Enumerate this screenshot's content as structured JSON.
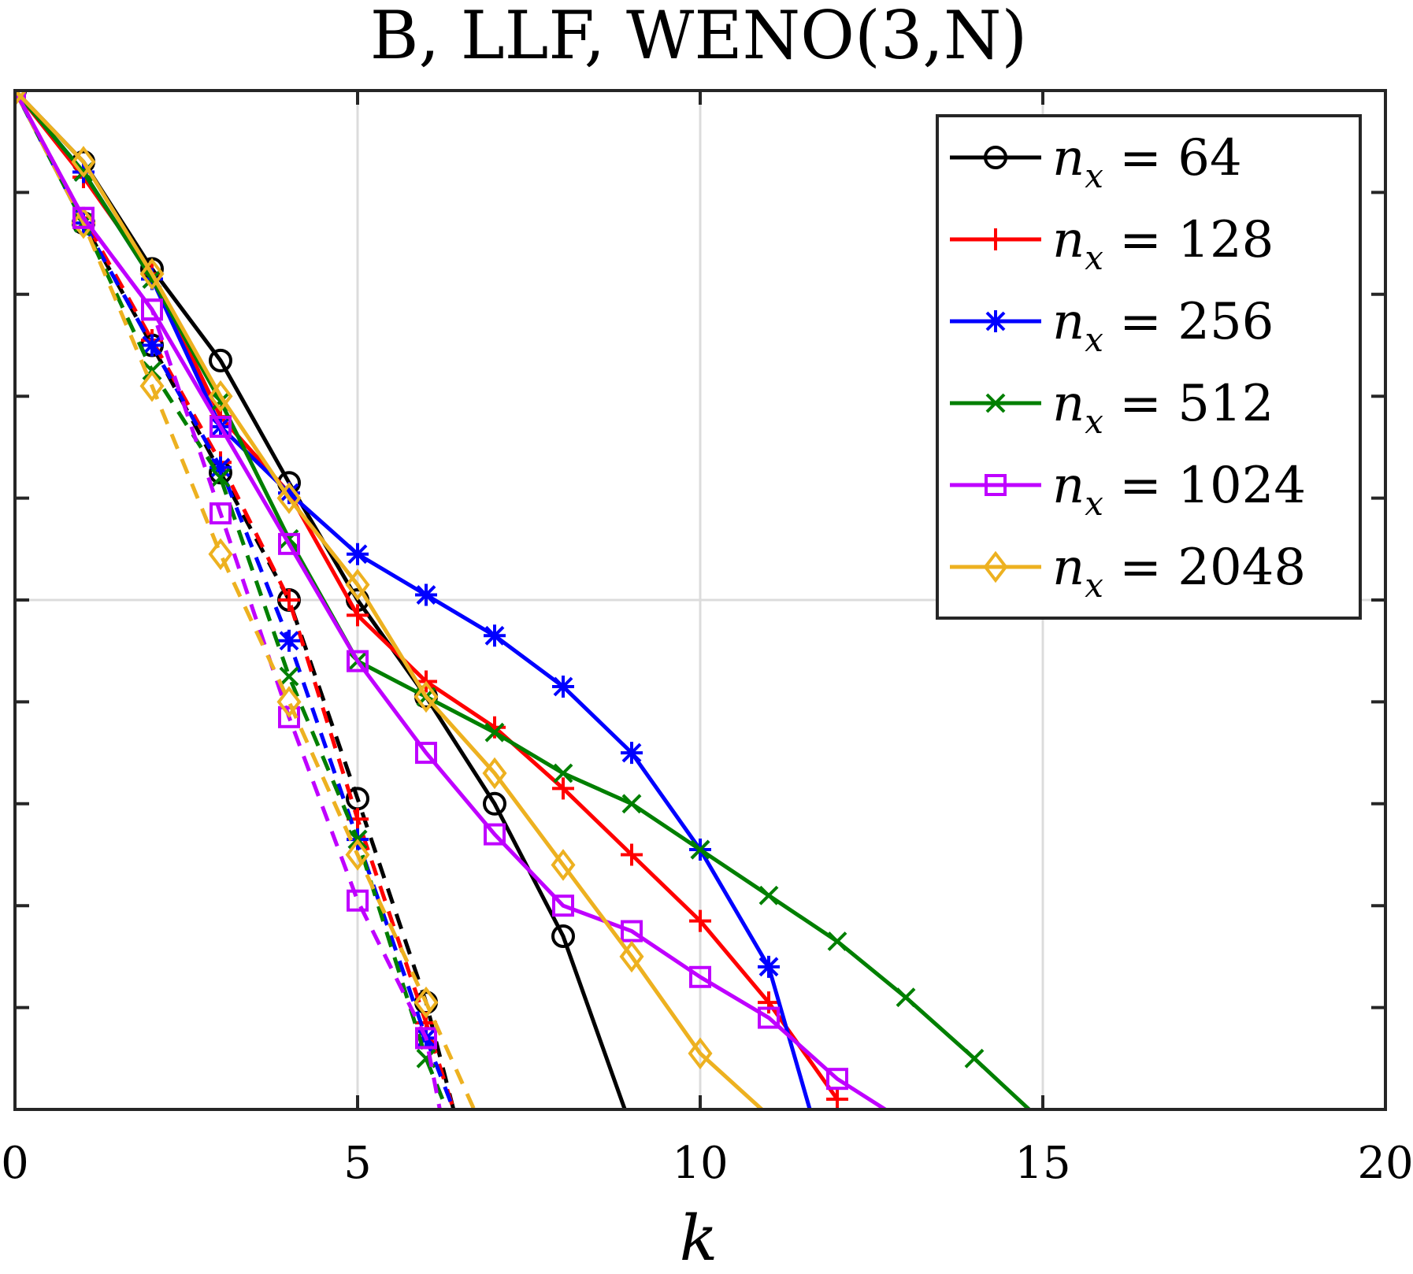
{
  "chart_data": {
    "type": "line",
    "title": "B, LLF, WENO(3,N)",
    "xlabel": "k",
    "ylabel": "",
    "xlim": [
      0,
      20
    ],
    "ylim": [
      -20,
      0
    ],
    "x_ticks": [
      0,
      5,
      10,
      15,
      20
    ],
    "x_tick_labels": [
      "0",
      "5",
      "10",
      "15",
      "20"
    ],
    "y_ticks": [
      -20,
      -18,
      -16,
      -14,
      -12,
      -10,
      -8,
      -6,
      -4,
      -2,
      0
    ],
    "grid": true,
    "legend_position": "top-right",
    "series": [
      {
        "name": "n_x = 64",
        "legend_var": "n",
        "legend_sub": "x",
        "legend_value": "64",
        "color": "#000000",
        "marker": "circle",
        "x": [
          0,
          1,
          2,
          3,
          4,
          5,
          6,
          7,
          8,
          8.9
        ],
        "y": [
          0,
          -1.4,
          -3.5,
          -5.3,
          -7.7,
          -10.0,
          -11.9,
          -14.0,
          -16.6,
          -20.0
        ],
        "dashed_x": [
          0,
          1,
          2,
          3,
          4,
          5,
          6,
          6.4
        ],
        "dashed_y": [
          0,
          -2.6,
          -5.0,
          -7.5,
          -10.0,
          -13.9,
          -17.9,
          -20.0
        ]
      },
      {
        "name": "n_x = 128",
        "legend_var": "n",
        "legend_sub": "x",
        "legend_value": "128",
        "color": "#ff0000",
        "marker": "plus",
        "x": [
          0,
          1,
          2,
          3,
          4,
          5,
          6,
          7,
          8,
          9,
          10,
          11,
          12
        ],
        "y": [
          0,
          -1.7,
          -3.6,
          -6.4,
          -7.9,
          -10.3,
          -11.6,
          -12.5,
          -13.7,
          -15.0,
          -16.3,
          -17.9,
          -19.8
        ],
        "dashed_x": [
          0,
          1,
          2,
          3,
          4,
          5,
          6,
          6.4
        ],
        "dashed_y": [
          0,
          -2.5,
          -4.9,
          -7.3,
          -10.0,
          -14.3,
          -18.3,
          -20.0
        ]
      },
      {
        "name": "n_x = 256",
        "legend_var": "n",
        "legend_sub": "x",
        "legend_value": "256",
        "color": "#0000ff",
        "marker": "star",
        "x": [
          0,
          1,
          2,
          3,
          4,
          5,
          6,
          7,
          8,
          9,
          10,
          11,
          11.6
        ],
        "y": [
          0,
          -1.6,
          -3.7,
          -6.6,
          -7.9,
          -9.1,
          -9.9,
          -10.7,
          -11.7,
          -13.0,
          -14.9,
          -17.2,
          -20.0
        ],
        "dashed_x": [
          0,
          1,
          2,
          3,
          4,
          5,
          6,
          6.4
        ],
        "dashed_y": [
          0,
          -2.6,
          -5.0,
          -7.4,
          -10.8,
          -14.7,
          -18.6,
          -20.0
        ]
      },
      {
        "name": "n_x = 512",
        "legend_var": "n",
        "legend_sub": "x",
        "legend_value": "512",
        "color": "#007f00",
        "marker": "x",
        "x": [
          0,
          1,
          2,
          3,
          4,
          5,
          6,
          7,
          8,
          9,
          10,
          11,
          12,
          13,
          14,
          14.8
        ],
        "y": [
          0,
          -1.6,
          -3.7,
          -6.1,
          -8.8,
          -11.2,
          -11.9,
          -12.6,
          -13.4,
          -14.0,
          -14.9,
          -15.8,
          -16.7,
          -17.8,
          -19.0,
          -20.0
        ],
        "dashed_x": [
          0,
          1,
          2,
          3,
          4,
          5,
          6,
          6.3
        ],
        "dashed_y": [
          0,
          -2.6,
          -5.5,
          -7.6,
          -11.5,
          -14.7,
          -19.0,
          -20.0
        ]
      },
      {
        "name": "n_x = 1024",
        "legend_var": "n",
        "legend_sub": "x",
        "legend_value": "1024",
        "color": "#bf00ff",
        "marker": "square",
        "x": [
          0,
          1,
          2,
          3,
          4,
          5,
          6,
          7,
          8,
          9,
          10,
          11,
          12,
          12.7
        ],
        "y": [
          0,
          -2.5,
          -4.3,
          -6.6,
          -8.9,
          -11.2,
          -13.0,
          -14.6,
          -16.0,
          -16.5,
          -17.4,
          -18.2,
          -19.4,
          -20.0
        ],
        "dashed_x": [
          0,
          1,
          2,
          3,
          4,
          5,
          6,
          6.2
        ],
        "dashed_y": [
          0,
          -2.5,
          -4.3,
          -8.3,
          -12.3,
          -15.9,
          -18.6,
          -20.0
        ]
      },
      {
        "name": "n_x = 2048",
        "legend_var": "n",
        "legend_sub": "x",
        "legend_value": "2048",
        "color": "#edb120",
        "marker": "diamond",
        "x": [
          0,
          1,
          2,
          3,
          4,
          5,
          6,
          7,
          8,
          9,
          10,
          10.9
        ],
        "y": [
          0,
          -1.4,
          -3.6,
          -6.0,
          -8.0,
          -9.7,
          -11.9,
          -13.4,
          -15.2,
          -17.0,
          -18.9,
          -20.0
        ],
        "dashed_x": [
          0,
          1,
          2,
          3,
          4,
          5,
          6,
          6.7
        ],
        "dashed_y": [
          0,
          -2.6,
          -5.8,
          -9.1,
          -12.0,
          -15.0,
          -17.9,
          -20.0
        ]
      }
    ]
  }
}
